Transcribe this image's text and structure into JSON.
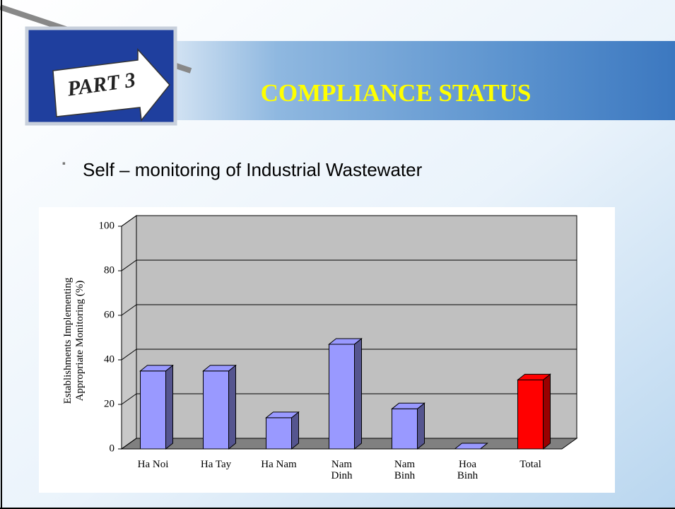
{
  "slide": {
    "part": "PART 3",
    "title": "COMPLIANCE STATUS",
    "bullet": "Self – monitoring of Industrial Wastewater"
  },
  "chart_data": {
    "type": "bar3d",
    "y_label": "Establishments Implementing\nAppropriate Monitoring (%)",
    "categories": [
      "Ha Noi",
      "Ha Tay",
      "Ha Nam",
      "Nam\nDinh",
      "Nam\nBinh",
      "Hoa\nBinh",
      "Total"
    ],
    "values": [
      35,
      35,
      14,
      47,
      18,
      0,
      31
    ],
    "colors": [
      "#9999ff",
      "#9999ff",
      "#9999ff",
      "#9999ff",
      "#9999ff",
      "#9999ff",
      "#ff0000"
    ],
    "ylim": [
      0,
      100
    ],
    "yticks": [
      0,
      20,
      40,
      60,
      80,
      100
    ],
    "grid": true
  }
}
